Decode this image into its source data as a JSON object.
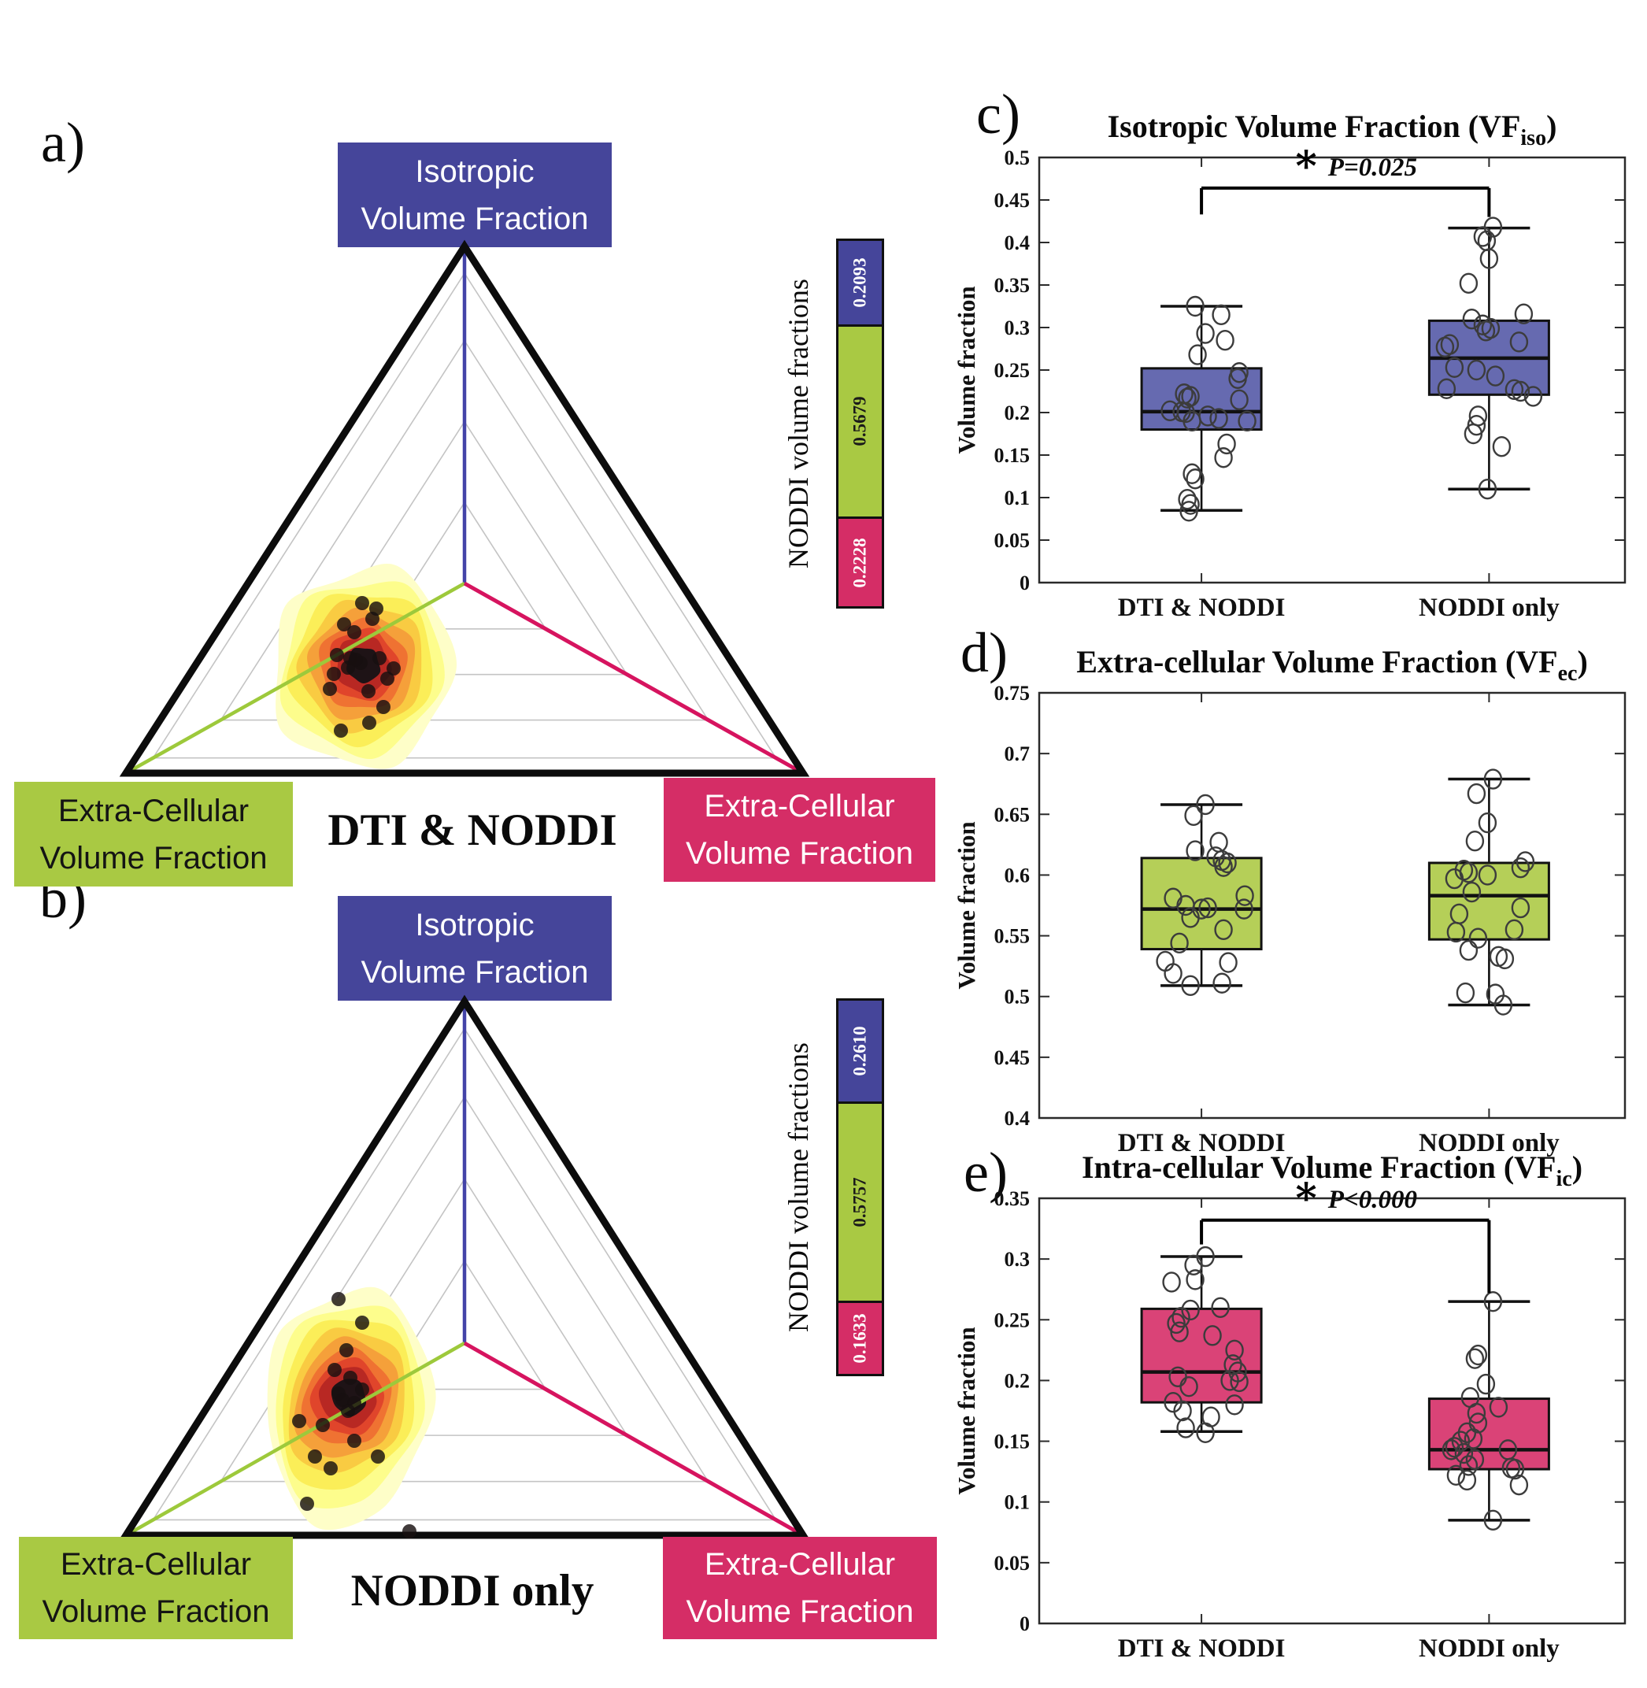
{
  "panel_letters": {
    "a": "a)",
    "b": "b)",
    "c": "c)",
    "d": "d)",
    "e": "e)"
  },
  "chart_data": [
    {
      "id": "ternary_dti_noddi",
      "type": "ternary-density",
      "svg": "ternary-a",
      "title": "DTI & NODDI",
      "labels": {
        "top": [
          "Isotropic",
          "Volume Fraction"
        ],
        "bottom_left": [
          "Extra-Cellular",
          "Volume Fraction"
        ],
        "bottom_right": [
          "Extra-Cellular",
          "Volume Fraction"
        ]
      },
      "bar_axis_label": "NODDI volume fractions",
      "noddi_volume_fractions": [
        {
          "component": "top",
          "value": "0.2093",
          "color": "#45459A",
          "text_color": "#ffffff"
        },
        {
          "component": "bottom_left",
          "value": "0.5679",
          "color": "#A9C943",
          "text_color": "#1a1a1a"
        },
        {
          "component": "bottom_right",
          "value": "0.2228",
          "color": "#D52D66",
          "text_color": "#ffffff"
        }
      ],
      "axis_line_colors": {
        "top": "#4343A8",
        "bottom_left": "#9DC93B",
        "bottom_right": "#D6145F"
      },
      "density": {
        "center": [
          372,
          555
        ],
        "radii": [
          118,
          128
        ],
        "contour_scales": [
          1.0,
          0.88,
          0.77,
          0.66,
          0.56,
          0.46,
          0.37,
          0.29,
          0.18
        ],
        "contour_colors": [
          "#FEFEC8",
          "#FDFD8C",
          "#FBEE58",
          "#F9CB42",
          "#F5A03A",
          "#EF7232",
          "#E0452B",
          "#B82823",
          "#1E1316"
        ],
        "shape_mults": [
          1.0,
          0.9,
          1.06,
          0.96,
          1.1,
          0.92,
          1.03,
          0.88,
          1.05,
          0.94
        ],
        "points": [
          [
            370,
            476
          ],
          [
            388,
            483
          ],
          [
            347,
            503
          ],
          [
            360,
            513
          ],
          [
            383,
            496
          ],
          [
            338,
            542
          ],
          [
            355,
            546
          ],
          [
            368,
            552
          ],
          [
            352,
            558
          ],
          [
            392,
            546
          ],
          [
            410,
            559
          ],
          [
            329,
            585
          ],
          [
            378,
            588
          ],
          [
            397,
            608
          ],
          [
            379,
            628
          ],
          [
            343,
            638
          ],
          [
            334,
            566
          ],
          [
            402,
            572
          ],
          [
            362,
            548
          ]
        ]
      }
    },
    {
      "id": "ternary_noddi_only",
      "type": "ternary-density",
      "svg": "ternary-b",
      "title": "NODDI only",
      "labels": {
        "top": [
          "Isotropic",
          "Volume Fraction"
        ],
        "bottom_left": [
          "Extra-Cellular",
          "Volume Fraction"
        ],
        "bottom_right": [
          "Extra-Cellular",
          "Volume Fraction"
        ]
      },
      "bar_axis_label": "NODDI volume fractions",
      "noddi_volume_fractions": [
        {
          "component": "top",
          "value": "0.2610",
          "color": "#45459A",
          "text_color": "#ffffff"
        },
        {
          "component": "bottom_left",
          "value": "0.5757",
          "color": "#A9C943",
          "text_color": "#1a1a1a"
        },
        {
          "component": "bottom_right",
          "value": "0.1633",
          "color": "#D52D66",
          "text_color": "#ffffff"
        }
      ],
      "axis_line_colors": {
        "top": "#4343A8",
        "bottom_left": "#9DC93B",
        "bottom_right": "#D6145F"
      },
      "density": {
        "center": [
          355,
          530
        ],
        "radii": [
          112,
          140
        ],
        "contour_scales": [
          1.0,
          0.88,
          0.77,
          0.66,
          0.56,
          0.46,
          0.37,
          0.29,
          0.18
        ],
        "contour_colors": [
          "#FEFEC8",
          "#FDFD8C",
          "#FBEE58",
          "#F9CB42",
          "#F5A03A",
          "#EF7232",
          "#E0452B",
          "#B82823",
          "#1E1316"
        ],
        "shape_mults": [
          0.97,
          0.9,
          1.08,
          1.24,
          1.02,
          0.94,
          1.0,
          0.9,
          1.04,
          0.93
        ],
        "points": [
          [
            340,
            405
          ],
          [
            370,
            435
          ],
          [
            350,
            470
          ],
          [
            335,
            495
          ],
          [
            355,
            505
          ],
          [
            370,
            520
          ],
          [
            340,
            525
          ],
          [
            345,
            533
          ],
          [
            360,
            537
          ],
          [
            352,
            547
          ],
          [
            290,
            560
          ],
          [
            320,
            565
          ],
          [
            360,
            585
          ],
          [
            310,
            605
          ],
          [
            330,
            620
          ],
          [
            390,
            605
          ],
          [
            300,
            665
          ],
          [
            430,
            700
          ]
        ]
      }
    },
    {
      "id": "vf_iso_boxplot",
      "type": "box",
      "svg": "box-c",
      "title_main": "Isotropic Volume Fraction (VF",
      "title_sub": "iso",
      "title_close": ")",
      "ylabel": "Volume fraction",
      "ylim": [
        0,
        0.5
      ],
      "yticks": [
        [
          0,
          "0"
        ],
        [
          0.05,
          "0.05"
        ],
        [
          0.1,
          "0.1"
        ],
        [
          0.15,
          "0.15"
        ],
        [
          0.2,
          "0.2"
        ],
        [
          0.25,
          "0.25"
        ],
        [
          0.3,
          "0.3"
        ],
        [
          0.35,
          "0.35"
        ],
        [
          0.4,
          "0.4"
        ],
        [
          0.45,
          "0.45"
        ],
        [
          0.5,
          "0.5"
        ]
      ],
      "box_fill": "#666AB0",
      "categories": [
        "DTI & NODDI",
        "NODDI only"
      ],
      "groups": [
        {
          "whisker_low": 0.085,
          "q1": 0.18,
          "median": 0.201,
          "q3": 0.252,
          "whisker_high": 0.325,
          "points": [
            [
              -8,
              0.325
            ],
            [
              25,
              0.315
            ],
            [
              5,
              0.293
            ],
            [
              30,
              0.285
            ],
            [
              -5,
              0.268
            ],
            [
              48,
              0.247
            ],
            [
              46,
              0.24
            ],
            [
              -22,
              0.222
            ],
            [
              -14,
              0.219
            ],
            [
              -18,
              0.217
            ],
            [
              48,
              0.215
            ],
            [
              -40,
              0.202
            ],
            [
              -25,
              0.201
            ],
            [
              -20,
              0.2
            ],
            [
              8,
              0.196
            ],
            [
              22,
              0.193
            ],
            [
              -12,
              0.19
            ],
            [
              58,
              0.19
            ],
            [
              32,
              0.163
            ],
            [
              28,
              0.147
            ],
            [
              -12,
              0.128
            ],
            [
              -8,
              0.122
            ],
            [
              -18,
              0.098
            ],
            [
              -14,
              0.092
            ],
            [
              -16,
              0.084
            ]
          ]
        },
        {
          "whisker_low": 0.11,
          "q1": 0.221,
          "median": 0.264,
          "q3": 0.308,
          "whisker_high": 0.417,
          "points": [
            [
              5,
              0.418
            ],
            [
              -8,
              0.407
            ],
            [
              -3,
              0.402
            ],
            [
              0,
              0.381
            ],
            [
              -26,
              0.352
            ],
            [
              44,
              0.316
            ],
            [
              -22,
              0.31
            ],
            [
              -8,
              0.303
            ],
            [
              2,
              0.299
            ],
            [
              -4,
              0.296
            ],
            [
              38,
              0.283
            ],
            [
              -50,
              0.28
            ],
            [
              -56,
              0.277
            ],
            [
              -44,
              0.253
            ],
            [
              -16,
              0.25
            ],
            [
              8,
              0.243
            ],
            [
              -54,
              0.228
            ],
            [
              32,
              0.227
            ],
            [
              40,
              0.225
            ],
            [
              56,
              0.219
            ],
            [
              -14,
              0.196
            ],
            [
              -16,
              0.185
            ],
            [
              -20,
              0.175
            ],
            [
              16,
              0.16
            ],
            [
              -2,
              0.11
            ]
          ]
        }
      ],
      "significance": {
        "star": "*",
        "label": "P=0.025",
        "bar_y": 0.464,
        "leg_left_to": 0.433,
        "leg_right_to": 0.43
      }
    },
    {
      "id": "vf_ec_boxplot",
      "type": "box",
      "svg": "box-d",
      "title_main": "Extra-cellular Volume Fraction (VF",
      "title_sub": "ec",
      "title_close": ")",
      "ylabel": "Volume fraction",
      "ylim": [
        0.4,
        0.75
      ],
      "yticks": [
        [
          0.4,
          "0.4"
        ],
        [
          0.45,
          "0.45"
        ],
        [
          0.5,
          "0.5"
        ],
        [
          0.55,
          "0.55"
        ],
        [
          0.6,
          "0.6"
        ],
        [
          0.65,
          "0.65"
        ],
        [
          0.7,
          "0.7"
        ],
        [
          0.75,
          "0.75"
        ]
      ],
      "box_fill": "#B5CF58",
      "categories": [
        "DTI & NODDI",
        "NODDI only"
      ],
      "groups": [
        {
          "whisker_low": 0.509,
          "q1": 0.539,
          "median": 0.572,
          "q3": 0.614,
          "whisker_high": 0.658,
          "points": [
            [
              5,
              0.658
            ],
            [
              -10,
              0.649
            ],
            [
              22,
              0.627
            ],
            [
              -8,
              0.62
            ],
            [
              18,
              0.615
            ],
            [
              26,
              0.612
            ],
            [
              33,
              0.61
            ],
            [
              28,
              0.607
            ],
            [
              55,
              0.583
            ],
            [
              -36,
              0.581
            ],
            [
              -20,
              0.575
            ],
            [
              8,
              0.573
            ],
            [
              0,
              0.572
            ],
            [
              54,
              0.572
            ],
            [
              -14,
              0.565
            ],
            [
              28,
              0.555
            ],
            [
              -28,
              0.544
            ],
            [
              -46,
              0.529
            ],
            [
              34,
              0.528
            ],
            [
              -36,
              0.519
            ],
            [
              26,
              0.511
            ],
            [
              -14,
              0.509
            ]
          ]
        },
        {
          "whisker_low": 0.493,
          "q1": 0.547,
          "median": 0.583,
          "q3": 0.61,
          "whisker_high": 0.679,
          "points": [
            [
              5,
              0.679
            ],
            [
              -16,
              0.667
            ],
            [
              -2,
              0.643
            ],
            [
              -18,
              0.628
            ],
            [
              46,
              0.611
            ],
            [
              40,
              0.606
            ],
            [
              -32,
              0.604
            ],
            [
              -26,
              0.602
            ],
            [
              -2,
              0.6
            ],
            [
              -44,
              0.597
            ],
            [
              -22,
              0.586
            ],
            [
              40,
              0.573
            ],
            [
              -38,
              0.568
            ],
            [
              32,
              0.555
            ],
            [
              -42,
              0.553
            ],
            [
              -14,
              0.548
            ],
            [
              -26,
              0.538
            ],
            [
              12,
              0.533
            ],
            [
              20,
              0.531
            ],
            [
              -30,
              0.503
            ],
            [
              8,
              0.502
            ],
            [
              18,
              0.493
            ]
          ]
        }
      ],
      "significance": null
    },
    {
      "id": "vf_ic_boxplot",
      "type": "box",
      "svg": "box-e",
      "title_main": "Intra-cellular Volume Fraction (VF",
      "title_sub": "ic",
      "title_close": ")",
      "ylabel": "Volume fraction",
      "ylim": [
        0,
        0.35
      ],
      "yticks": [
        [
          0,
          "0"
        ],
        [
          0.05,
          "0.05"
        ],
        [
          0.1,
          "0.1"
        ],
        [
          0.15,
          "0.15"
        ],
        [
          0.2,
          "0.2"
        ],
        [
          0.25,
          "0.25"
        ],
        [
          0.3,
          "0.3"
        ],
        [
          0.35,
          "0.35"
        ]
      ],
      "box_fill": "#DA4377",
      "categories": [
        "DTI & NODDI",
        "NODDI only"
      ],
      "groups": [
        {
          "whisker_low": 0.158,
          "q1": 0.182,
          "median": 0.207,
          "q3": 0.259,
          "whisker_high": 0.302,
          "points": [
            [
              5,
              0.302
            ],
            [
              -10,
              0.295
            ],
            [
              -8,
              0.283
            ],
            [
              -38,
              0.281
            ],
            [
              24,
              0.26
            ],
            [
              -14,
              0.258
            ],
            [
              -26,
              0.252
            ],
            [
              -32,
              0.247
            ],
            [
              -28,
              0.24
            ],
            [
              14,
              0.237
            ],
            [
              42,
              0.225
            ],
            [
              40,
              0.213
            ],
            [
              46,
              0.207
            ],
            [
              -30,
              0.203
            ],
            [
              36,
              0.2
            ],
            [
              48,
              0.199
            ],
            [
              -16,
              0.195
            ],
            [
              -36,
              0.182
            ],
            [
              42,
              0.18
            ],
            [
              -24,
              0.175
            ],
            [
              12,
              0.17
            ],
            [
              -20,
              0.161
            ],
            [
              5,
              0.157
            ]
          ]
        },
        {
          "whisker_low": 0.085,
          "q1": 0.127,
          "median": 0.143,
          "q3": 0.185,
          "whisker_high": 0.265,
          "points": [
            [
              5,
              0.265
            ],
            [
              -14,
              0.221
            ],
            [
              -18,
              0.218
            ],
            [
              -4,
              0.197
            ],
            [
              -24,
              0.186
            ],
            [
              12,
              0.178
            ],
            [
              -16,
              0.173
            ],
            [
              -14,
              0.165
            ],
            [
              -28,
              0.157
            ],
            [
              -20,
              0.152
            ],
            [
              -36,
              0.15
            ],
            [
              -44,
              0.145
            ],
            [
              -48,
              0.143
            ],
            [
              24,
              0.143
            ],
            [
              -32,
              0.14
            ],
            [
              -18,
              0.135
            ],
            [
              -26,
              0.13
            ],
            [
              28,
              0.128
            ],
            [
              33,
              0.127
            ],
            [
              -42,
              0.122
            ],
            [
              -28,
              0.118
            ],
            [
              38,
              0.114
            ],
            [
              5,
              0.085
            ]
          ]
        }
      ],
      "significance": {
        "star": "*",
        "label": "P<0.000",
        "bar_y": 0.332,
        "leg_left_to": 0.312,
        "leg_right_to": 0.272
      }
    }
  ]
}
